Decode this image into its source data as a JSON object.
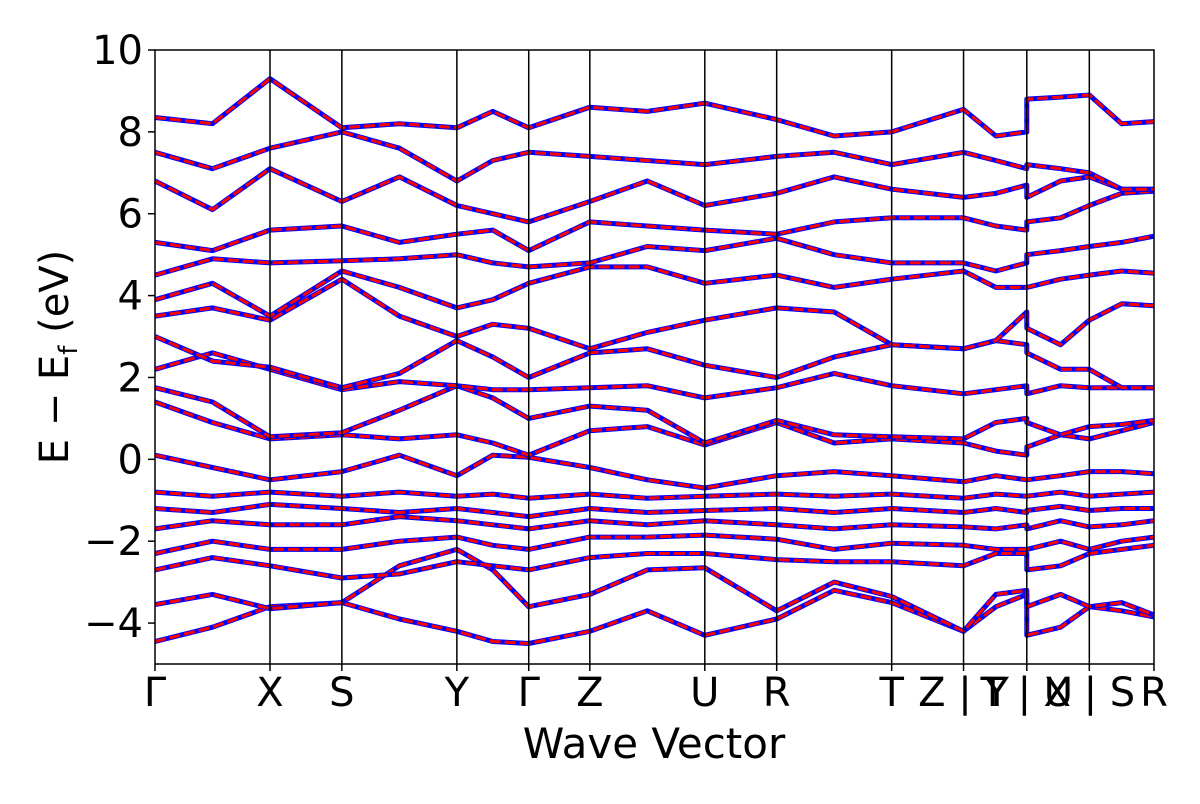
{
  "chart_data": {
    "type": "line",
    "title": "",
    "xlabel": "Wave Vector",
    "ylabel_main": "E − E",
    "ylabel_sub": "f",
    "ylabel_unit": " (eV)",
    "ylim": [
      -5,
      10
    ],
    "yticks": [
      -4,
      -2,
      0,
      2,
      4,
      6,
      8,
      10
    ],
    "ytick_labels": [
      "−4",
      "−2",
      "0",
      "2",
      "4",
      "6",
      "8",
      "10"
    ],
    "xlim": [
      0,
      13.9
    ],
    "kpoints": [
      {
        "label": "Γ",
        "x": 0.0
      },
      {
        "label": "X",
        "x": 1.6
      },
      {
        "label": "S",
        "x": 2.6
      },
      {
        "label": "Y",
        "x": 4.2
      },
      {
        "label": "Γ",
        "x": 5.2
      },
      {
        "label": "Z",
        "x": 6.05
      },
      {
        "label": "U",
        "x": 7.65
      },
      {
        "label": "R",
        "x": 8.65
      },
      {
        "label": "T",
        "x": 10.25
      },
      {
        "label": "Z | Y",
        "x": 11.25
      },
      {
        "label": "T | U",
        "x": 12.13
      },
      {
        "label": "X | S",
        "x": 13.0
      },
      {
        "label": "R",
        "x": 13.9
      }
    ],
    "grid": false,
    "legend": "none",
    "series": [
      {
        "color": "#0000ff",
        "style": "solid",
        "values": [
          [
            0.0,
            -4.45,
            0.8,
            -4.1,
            1.6,
            -3.6,
            2.6,
            -3.5,
            3.4,
            -3.9,
            4.2,
            -4.2,
            4.7,
            -4.45,
            5.2,
            -4.5,
            6.05,
            -4.2,
            6.85,
            -3.7,
            7.65,
            -4.3,
            8.65,
            -3.9,
            9.45,
            -3.2,
            10.25,
            -3.5,
            11.25,
            -4.2,
            11.7,
            -3.6,
            12.13,
            -3.3,
            12.13,
            -4.3,
            12.6,
            -4.1,
            13.0,
            -3.6,
            13.45,
            -3.7,
            13.9,
            -3.85
          ],
          [
            0.0,
            -3.55,
            0.8,
            -3.3,
            1.6,
            -3.65,
            2.6,
            -3.5,
            3.4,
            -2.6,
            4.2,
            -2.2,
            4.7,
            -2.7,
            5.2,
            -3.6,
            6.05,
            -3.3,
            6.85,
            -2.7,
            7.65,
            -2.65,
            8.65,
            -3.7,
            9.45,
            -3.0,
            10.25,
            -3.35,
            11.25,
            -4.2,
            11.7,
            -3.3,
            12.13,
            -3.2,
            12.13,
            -3.6,
            12.6,
            -3.3,
            13.0,
            -3.6,
            13.45,
            -3.5,
            13.9,
            -3.8
          ],
          [
            0.0,
            -2.7,
            0.8,
            -2.4,
            1.6,
            -2.6,
            2.6,
            -2.9,
            3.4,
            -2.8,
            4.2,
            -2.5,
            4.7,
            -2.6,
            5.2,
            -2.7,
            6.05,
            -2.4,
            6.85,
            -2.3,
            7.65,
            -2.3,
            8.65,
            -2.45,
            9.45,
            -2.5,
            10.25,
            -2.5,
            11.25,
            -2.6,
            11.7,
            -2.3,
            12.13,
            -2.3,
            12.13,
            -2.7,
            12.6,
            -2.6,
            13.0,
            -2.3,
            13.45,
            -2.2,
            13.9,
            -2.1
          ],
          [
            0.0,
            -2.3,
            0.8,
            -2.0,
            1.6,
            -2.2,
            2.6,
            -2.2,
            3.4,
            -2.0,
            4.2,
            -1.9,
            4.7,
            -2.1,
            5.2,
            -2.2,
            6.05,
            -1.9,
            6.85,
            -1.9,
            7.65,
            -1.85,
            8.65,
            -1.95,
            9.45,
            -2.2,
            10.25,
            -2.05,
            11.25,
            -2.1,
            11.7,
            -2.2,
            12.13,
            -2.2,
            12.13,
            -2.2,
            12.6,
            -2.0,
            13.0,
            -2.2,
            13.45,
            -2.0,
            13.9,
            -1.9
          ],
          [
            0.0,
            -1.7,
            0.8,
            -1.5,
            1.6,
            -1.6,
            2.6,
            -1.6,
            3.4,
            -1.4,
            4.2,
            -1.5,
            4.7,
            -1.6,
            5.2,
            -1.7,
            6.05,
            -1.5,
            6.85,
            -1.6,
            7.65,
            -1.5,
            8.65,
            -1.6,
            9.45,
            -1.7,
            10.25,
            -1.6,
            11.25,
            -1.65,
            11.7,
            -1.7,
            12.13,
            -1.6,
            12.13,
            -1.7,
            12.6,
            -1.5,
            13.0,
            -1.65,
            13.45,
            -1.6,
            13.9,
            -1.5
          ],
          [
            0.0,
            -1.2,
            0.8,
            -1.3,
            1.6,
            -1.1,
            2.6,
            -1.2,
            3.4,
            -1.3,
            4.2,
            -1.2,
            4.7,
            -1.3,
            5.2,
            -1.4,
            6.05,
            -1.2,
            6.85,
            -1.3,
            7.65,
            -1.25,
            8.65,
            -1.2,
            9.45,
            -1.3,
            10.25,
            -1.2,
            11.25,
            -1.3,
            11.7,
            -1.2,
            12.13,
            -1.3,
            12.13,
            -1.25,
            12.6,
            -1.15,
            13.0,
            -1.25,
            13.45,
            -1.2,
            13.9,
            -1.2
          ],
          [
            0.0,
            -0.8,
            0.8,
            -0.9,
            1.6,
            -0.8,
            2.6,
            -0.9,
            3.4,
            -0.8,
            4.2,
            -0.9,
            4.7,
            -0.85,
            5.2,
            -0.95,
            6.05,
            -0.85,
            6.85,
            -0.95,
            7.65,
            -0.9,
            8.65,
            -0.85,
            9.45,
            -0.9,
            10.25,
            -0.85,
            11.25,
            -0.95,
            11.7,
            -0.85,
            12.13,
            -0.9,
            12.13,
            -0.9,
            12.6,
            -0.8,
            13.0,
            -0.9,
            13.45,
            -0.85,
            13.9,
            -0.8
          ],
          [
            0.0,
            0.1,
            0.8,
            -0.2,
            1.6,
            -0.5,
            2.6,
            -0.3,
            3.4,
            0.1,
            4.2,
            -0.4,
            4.7,
            0.1,
            5.2,
            0.05,
            6.05,
            -0.2,
            6.85,
            -0.5,
            7.65,
            -0.7,
            8.65,
            -0.4,
            9.45,
            -0.3,
            10.25,
            -0.4,
            11.25,
            -0.55,
            11.7,
            -0.4,
            12.13,
            -0.5,
            12.13,
            -0.5,
            12.6,
            -0.4,
            13.0,
            -0.3,
            13.45,
            -0.3,
            13.9,
            -0.35
          ],
          [
            0.0,
            1.4,
            0.8,
            0.9,
            1.6,
            0.5,
            2.6,
            0.6,
            3.4,
            0.5,
            4.2,
            0.6,
            4.7,
            0.4,
            5.2,
            0.1,
            6.05,
            0.7,
            6.85,
            0.8,
            7.65,
            0.35,
            8.65,
            0.9,
            9.45,
            0.4,
            10.25,
            0.5,
            11.25,
            0.4,
            11.7,
            0.2,
            12.13,
            0.1,
            12.13,
            0.3,
            12.6,
            0.6,
            13.0,
            0.5,
            13.45,
            0.7,
            13.9,
            0.9
          ],
          [
            0.0,
            1.75,
            0.8,
            1.4,
            1.6,
            0.55,
            2.6,
            0.65,
            3.4,
            1.2,
            4.2,
            1.8,
            4.7,
            1.5,
            5.2,
            1.0,
            6.05,
            1.3,
            6.85,
            1.2,
            7.65,
            0.4,
            8.65,
            0.95,
            9.45,
            0.6,
            10.25,
            0.55,
            11.25,
            0.5,
            11.7,
            0.9,
            12.13,
            1.0,
            12.13,
            0.9,
            12.6,
            0.6,
            13.0,
            0.8,
            13.45,
            0.85,
            13.9,
            0.95
          ],
          [
            0.0,
            2.2,
            0.8,
            2.6,
            1.6,
            2.2,
            2.6,
            1.7,
            3.4,
            1.9,
            4.2,
            1.8,
            4.7,
            1.7,
            5.2,
            1.7,
            6.05,
            1.75,
            6.85,
            1.8,
            7.65,
            1.5,
            8.65,
            1.75,
            9.45,
            2.1,
            10.25,
            1.8,
            11.25,
            1.6,
            11.7,
            1.7,
            12.13,
            1.8,
            12.13,
            1.6,
            12.6,
            1.8,
            13.0,
            1.75,
            13.45,
            1.75,
            13.9,
            1.75
          ],
          [
            0.0,
            3.0,
            0.8,
            2.4,
            1.6,
            2.25,
            2.6,
            1.75,
            3.4,
            2.1,
            4.2,
            2.9,
            4.7,
            2.5,
            5.2,
            2.0,
            6.05,
            2.6,
            6.85,
            2.7,
            7.65,
            2.3,
            8.65,
            2.0,
            9.45,
            2.5,
            10.25,
            2.8,
            11.25,
            2.7,
            11.7,
            2.9,
            12.13,
            2.8,
            12.13,
            2.6,
            12.6,
            2.2,
            13.0,
            2.2,
            13.45,
            1.75,
            13.9,
            1.75
          ],
          [
            0.0,
            3.5,
            0.8,
            3.7,
            1.6,
            3.4,
            2.6,
            4.4,
            3.4,
            3.5,
            4.2,
            3.0,
            4.7,
            3.3,
            5.2,
            3.2,
            6.05,
            2.7,
            6.85,
            3.1,
            7.65,
            3.4,
            8.65,
            3.7,
            9.45,
            3.6,
            10.25,
            2.8,
            11.25,
            2.7,
            11.7,
            2.9,
            12.13,
            3.6,
            12.13,
            3.2,
            12.6,
            2.8,
            13.0,
            3.4,
            13.45,
            3.8,
            13.9,
            3.75
          ],
          [
            0.0,
            3.9,
            0.8,
            4.3,
            1.6,
            3.5,
            2.6,
            4.6,
            3.4,
            4.2,
            4.2,
            3.7,
            4.7,
            3.9,
            5.2,
            4.3,
            6.05,
            4.7,
            6.85,
            4.7,
            7.65,
            4.3,
            8.65,
            4.5,
            9.45,
            4.2,
            10.25,
            4.4,
            11.25,
            4.6,
            11.7,
            4.2,
            12.13,
            4.2,
            12.13,
            4.2,
            12.6,
            4.4,
            13.0,
            4.5,
            13.45,
            4.6,
            13.9,
            4.55
          ],
          [
            0.0,
            4.5,
            0.8,
            4.9,
            1.6,
            4.8,
            2.6,
            4.85,
            3.4,
            4.9,
            4.2,
            5.0,
            4.7,
            4.8,
            5.2,
            4.7,
            6.05,
            4.8,
            6.85,
            5.2,
            7.65,
            5.1,
            8.65,
            5.4,
            9.45,
            5.0,
            10.25,
            4.8,
            11.25,
            4.8,
            11.7,
            4.6,
            12.13,
            4.8,
            12.13,
            5.0,
            12.6,
            5.1,
            13.0,
            5.2,
            13.45,
            5.3,
            13.9,
            5.45
          ],
          [
            0.0,
            5.3,
            0.8,
            5.1,
            1.6,
            5.6,
            2.6,
            5.7,
            3.4,
            5.3,
            4.2,
            5.5,
            4.7,
            5.6,
            5.2,
            5.1,
            6.05,
            5.8,
            6.85,
            5.7,
            7.65,
            5.6,
            8.65,
            5.5,
            9.45,
            5.8,
            10.25,
            5.9,
            11.25,
            5.9,
            11.7,
            5.7,
            12.13,
            5.6,
            12.13,
            5.8,
            12.6,
            5.9,
            13.0,
            6.2,
            13.45,
            6.5,
            13.9,
            6.55
          ],
          [
            0.0,
            6.8,
            0.8,
            6.1,
            1.6,
            7.1,
            2.6,
            6.3,
            3.4,
            6.9,
            4.2,
            6.2,
            4.7,
            6.0,
            5.2,
            5.8,
            6.05,
            6.3,
            6.85,
            6.8,
            7.65,
            6.2,
            8.65,
            6.5,
            9.45,
            6.9,
            10.25,
            6.6,
            11.25,
            6.4,
            11.7,
            6.5,
            12.13,
            6.7,
            12.13,
            6.4,
            12.6,
            6.8,
            13.0,
            6.9,
            13.45,
            6.6,
            13.9,
            6.6
          ],
          [
            0.0,
            7.5,
            0.8,
            7.1,
            1.6,
            7.6,
            2.6,
            8.0,
            3.4,
            7.6,
            4.2,
            6.8,
            4.7,
            7.3,
            5.2,
            7.5,
            6.05,
            7.4,
            6.85,
            7.3,
            7.65,
            7.2,
            8.65,
            7.4,
            9.45,
            7.5,
            10.25,
            7.2,
            11.25,
            7.5,
            11.7,
            7.3,
            12.13,
            7.1,
            12.13,
            7.2,
            12.6,
            7.1,
            13.0,
            7.0,
            13.45,
            6.6,
            13.9,
            6.6
          ],
          [
            0.0,
            8.35,
            0.8,
            8.2,
            1.6,
            9.3,
            2.6,
            8.1,
            3.4,
            8.2,
            4.2,
            8.1,
            4.7,
            8.5,
            5.2,
            8.1,
            6.05,
            8.6,
            6.85,
            8.5,
            7.65,
            8.7,
            8.65,
            8.3,
            9.45,
            7.9,
            10.25,
            8.0,
            11.25,
            8.55,
            11.7,
            7.9,
            12.13,
            8.0,
            12.13,
            8.8,
            12.6,
            8.85,
            13.0,
            8.9,
            13.45,
            8.2,
            13.9,
            8.25
          ]
        ]
      },
      {
        "color": "#ff0000",
        "style": "dashed",
        "values": "same-as-blue"
      }
    ]
  }
}
